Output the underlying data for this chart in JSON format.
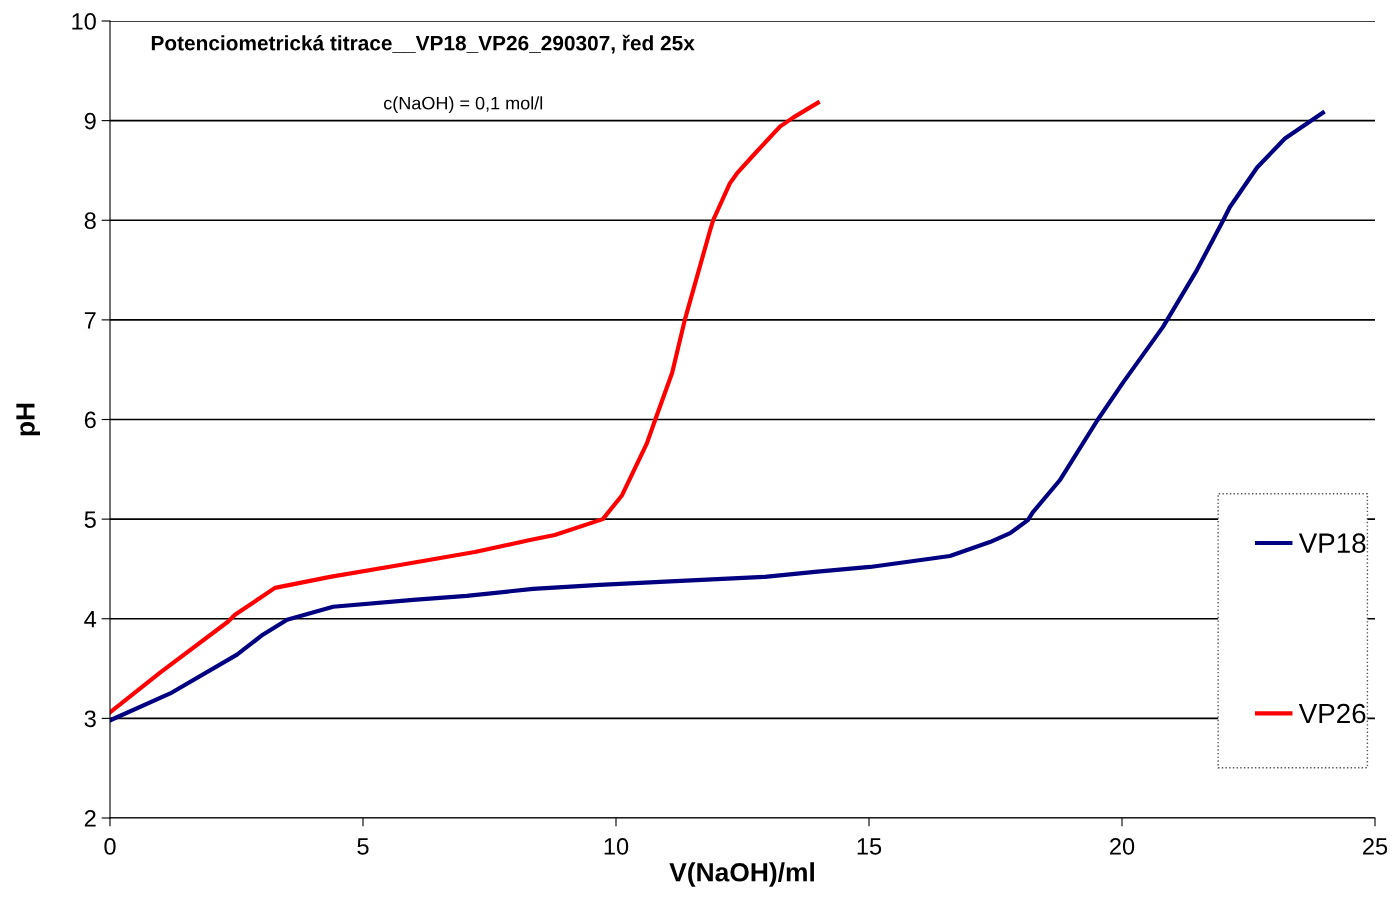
{
  "chart_data": {
    "type": "line",
    "title": "Potenciometrická titrace__VP18_VP26_290307, řed 25x",
    "subtitle": "c(NaOH) = 0,1 mol/l",
    "xlabel": "V(NaOH)/ml",
    "ylabel": "pH",
    "xlim": [
      0,
      25
    ],
    "xticks": [
      0,
      5,
      10,
      15,
      20,
      25
    ],
    "ylim": [
      2,
      10
    ],
    "yticks": [
      2,
      3,
      4,
      5,
      6,
      7,
      8,
      9,
      10
    ],
    "grid": "y",
    "legend": "right",
    "marker": "none",
    "line_style": "solid",
    "series": [
      {
        "name": "VP18",
        "color": "#000080",
        "x": [
          0,
          1.19,
          2.51,
          3.02,
          3.5,
          4.41,
          5.99,
          7.05,
          8.36,
          9.68,
          10.87,
          12.94,
          13.93,
          15.02,
          16.6,
          17.39,
          17.79,
          18.14,
          18.24,
          18.77,
          19.51,
          20.02,
          20.81,
          21.48,
          21.98,
          22.13,
          22.67,
          23.22,
          23.97
        ],
        "values": [
          2.98,
          3.25,
          3.64,
          3.84,
          3.99,
          4.12,
          4.19,
          4.23,
          4.3,
          4.34,
          4.37,
          4.42,
          4.47,
          4.52,
          4.63,
          4.77,
          4.86,
          4.99,
          5.07,
          5.39,
          5.99,
          6.37,
          6.93,
          7.5,
          7.98,
          8.13,
          8.53,
          8.82,
          9.08
        ]
      },
      {
        "name": "VP26",
        "color": "#ff0000",
        "x": [
          0,
          0.99,
          2.33,
          2.47,
          3.0,
          3.26,
          4.35,
          5.73,
          7.21,
          8.3,
          8.79,
          9.74,
          10.12,
          10.61,
          10.77,
          11.11,
          11.36,
          11.86,
          11.92,
          12.25,
          12.39,
          12.71,
          13.24,
          13.5,
          13.99
        ],
        "values": [
          3.06,
          3.46,
          3.97,
          4.04,
          4.22,
          4.31,
          4.42,
          4.54,
          4.67,
          4.79,
          4.84,
          5.0,
          5.24,
          5.76,
          5.99,
          6.47,
          7.0,
          7.9,
          8.0,
          8.37,
          8.47,
          8.65,
          8.94,
          9.03,
          9.18
        ]
      }
    ]
  }
}
